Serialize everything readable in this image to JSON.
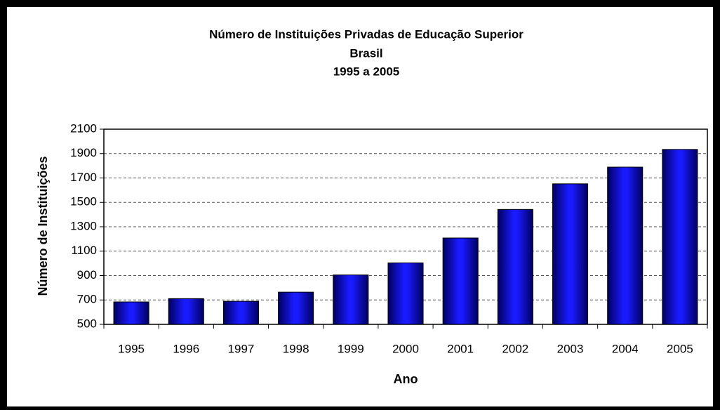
{
  "chart_data": {
    "type": "bar",
    "title": [
      "Número de Instituições Privadas de Educação Superior",
      "Brasil",
      "1995 a 2005"
    ],
    "x_label": "Ano",
    "y_label": "Número de Instituições",
    "categories": [
      "1995",
      "1996",
      "1997",
      "1998",
      "1999",
      "2000",
      "2001",
      "2002",
      "2003",
      "2004",
      "2005"
    ],
    "values": [
      684,
      711,
      689,
      764,
      905,
      1004,
      1208,
      1442,
      1652,
      1789,
      1934
    ],
    "color": "#1a1aff",
    "ylim": [
      500,
      2100
    ],
    "yticks": [
      500,
      700,
      900,
      1100,
      1300,
      1500,
      1700,
      1900,
      2100
    ],
    "grid": true
  }
}
